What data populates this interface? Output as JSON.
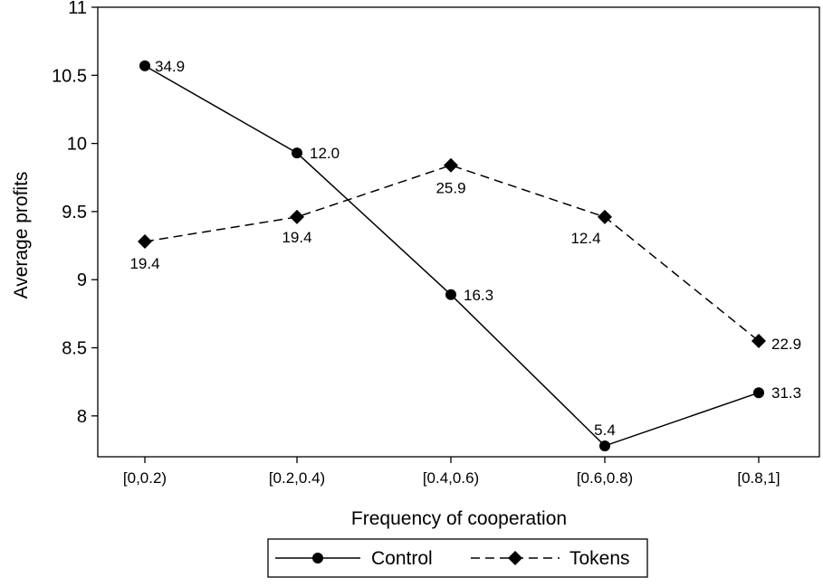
{
  "chart_data": {
    "type": "line",
    "title": "",
    "xlabel": "Frequency of cooperation",
    "ylabel": "Average profits",
    "categories": [
      "[0,0.2)",
      "[0.2,0.4)",
      "[0.4,0.6)",
      "[0.6,0.8)",
      "[0.8,1]"
    ],
    "ylim": [
      7.7,
      11
    ],
    "yticks": [
      8,
      8.5,
      9,
      9.5,
      10,
      10.5,
      11
    ],
    "ytick_labels": [
      "8",
      "8.5",
      "9",
      "9.5",
      "10",
      "10.5",
      "11"
    ],
    "grid": false,
    "legend_position": "bottom",
    "series": [
      {
        "name": "Control",
        "marker": "circle",
        "line_style": "solid",
        "color": "#000000",
        "values": [
          10.57,
          9.93,
          8.89,
          7.78,
          8.17
        ],
        "labels": [
          "34.9",
          "12.0",
          "16.3",
          "5.4",
          "31.3"
        ]
      },
      {
        "name": "Tokens",
        "marker": "diamond",
        "line_style": "dashed",
        "color": "#000000",
        "values": [
          9.28,
          9.46,
          9.84,
          9.46,
          8.55
        ],
        "labels": [
          "19.4",
          "19.4",
          "25.9",
          "12.4",
          "22.9"
        ]
      }
    ]
  }
}
